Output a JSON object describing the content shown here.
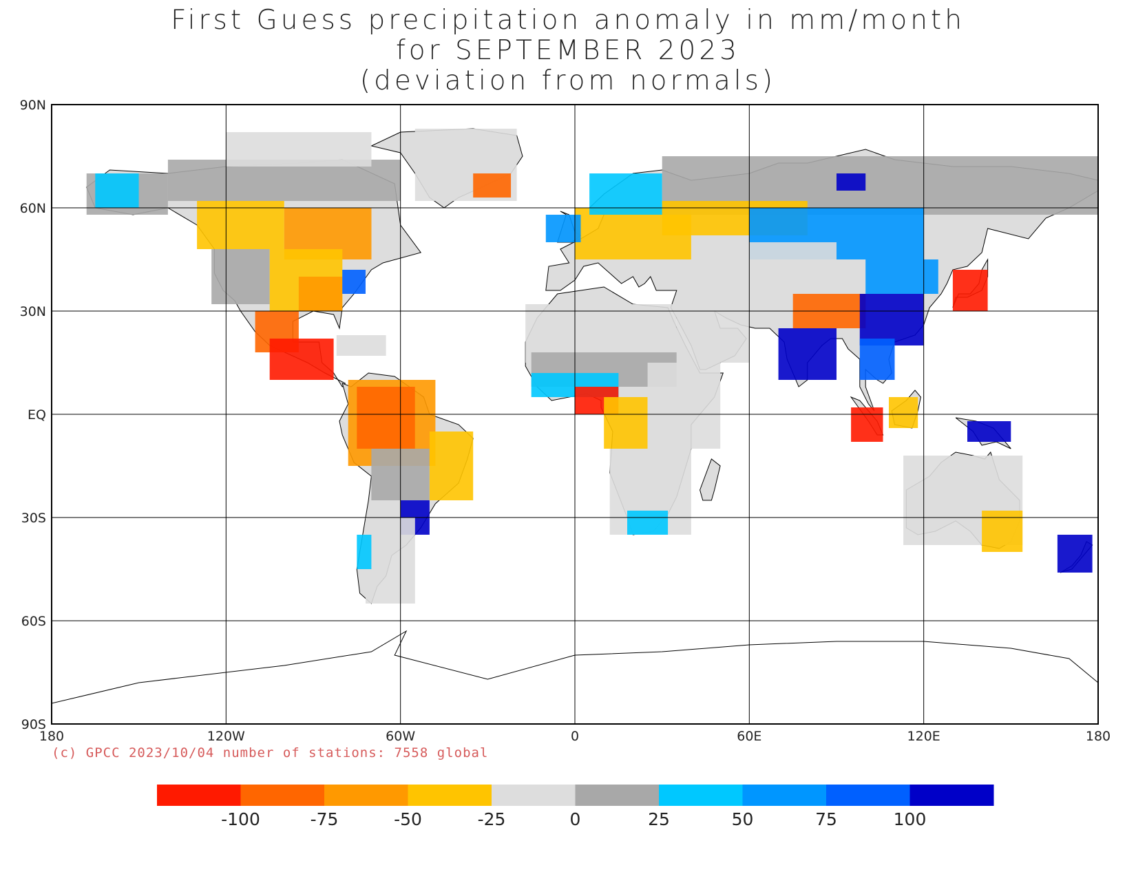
{
  "title": {
    "line1": "First Guess precipitation anomaly in mm/month",
    "line2": "for SEPTEMBER 2023",
    "line3": "(deviation from normals)"
  },
  "map": {
    "projection": "equirectangular",
    "lat_range": [
      -90,
      90
    ],
    "lon_range": [
      -180,
      180
    ],
    "gridlines": true,
    "lat_ticks": [
      "90N",
      "60N",
      "30N",
      "EQ",
      "30S",
      "60S",
      "90S"
    ],
    "lon_ticks": [
      "180",
      "120W",
      "60W",
      "0",
      "60E",
      "120E",
      "180"
    ]
  },
  "credit": "(c) GPCC 2023/10/04 number of stations: 7558 global",
  "colorbar": {
    "colors": [
      "#ff1a00",
      "#ff6600",
      "#ff9900",
      "#ffc400",
      "#dddddd",
      "#a8a8a8",
      "#00c8ff",
      "#0096ff",
      "#0060ff",
      "#0000c8"
    ],
    "tick_labels": [
      "-100",
      "-75",
      "-50",
      "-25",
      "0",
      "25",
      "50",
      "75",
      "100"
    ]
  },
  "regions": [
    {
      "name": "alaska",
      "color": "#a8a8a8",
      "lon": [
        -168,
        -140
      ],
      "lat": [
        58,
        70
      ]
    },
    {
      "name": "alaska-wet",
      "color": "#00c8ff",
      "lon": [
        -165,
        -150
      ],
      "lat": [
        60,
        70
      ]
    },
    {
      "name": "northern-canada",
      "color": "#a8a8a8",
      "lon": [
        -140,
        -60
      ],
      "lat": [
        62,
        74
      ]
    },
    {
      "name": "arctic-islands",
      "color": "#dddddd",
      "lon": [
        -120,
        -70
      ],
      "lat": [
        72,
        82
      ]
    },
    {
      "name": "greenland",
      "color": "#dddddd",
      "lon": [
        -55,
        -20
      ],
      "lat": [
        62,
        83
      ]
    },
    {
      "name": "greenland-east",
      "color": "#ff6600",
      "lon": [
        -35,
        -22
      ],
      "lat": [
        63,
        70
      ]
    },
    {
      "name": "western-canada",
      "color": "#ffc400",
      "lon": [
        -130,
        -100
      ],
      "lat": [
        48,
        62
      ]
    },
    {
      "name": "central-canada",
      "color": "#ff9900",
      "lon": [
        -100,
        -70
      ],
      "lat": [
        45,
        60
      ]
    },
    {
      "name": "us-west",
      "color": "#a8a8a8",
      "lon": [
        -125,
        -105
      ],
      "lat": [
        32,
        48
      ]
    },
    {
      "name": "us-central",
      "color": "#ffc400",
      "lon": [
        -105,
        -80
      ],
      "lat": [
        30,
        48
      ]
    },
    {
      "name": "us-southeast",
      "color": "#ff9900",
      "lon": [
        -95,
        -80
      ],
      "lat": [
        30,
        40
      ]
    },
    {
      "name": "us-east-coast-wet",
      "color": "#0060ff",
      "lon": [
        -80,
        -72
      ],
      "lat": [
        35,
        42
      ]
    },
    {
      "name": "mexico",
      "color": "#ff6600",
      "lon": [
        -110,
        -95
      ],
      "lat": [
        18,
        30
      ]
    },
    {
      "name": "mexico-dry",
      "color": "#ff1a00",
      "lon": [
        -105,
        -83
      ],
      "lat": [
        10,
        22
      ]
    },
    {
      "name": "caribbean",
      "color": "#dddddd",
      "lon": [
        -82,
        -65
      ],
      "lat": [
        17,
        23
      ]
    },
    {
      "name": "amazon",
      "color": "#ff9900",
      "lon": [
        -78,
        -48
      ],
      "lat": [
        -15,
        10
      ]
    },
    {
      "name": "amazon-dry",
      "color": "#ff6600",
      "lon": [
        -75,
        -55
      ],
      "lat": [
        -10,
        8
      ]
    },
    {
      "name": "brazil-east",
      "color": "#ffc400",
      "lon": [
        -50,
        -35
      ],
      "lat": [
        -25,
        -5
      ]
    },
    {
      "name": "bolivia",
      "color": "#a8a8a8",
      "lon": [
        -70,
        -50
      ],
      "lat": [
        -25,
        -10
      ]
    },
    {
      "name": "southern-brazil-wet",
      "color": "#0000c8",
      "lon": [
        -60,
        -50
      ],
      "lat": [
        -35,
        -25
      ]
    },
    {
      "name": "argentina",
      "color": "#dddddd",
      "lon": [
        -72,
        -55
      ],
      "lat": [
        -55,
        -30
      ]
    },
    {
      "name": "chile-coast",
      "color": "#00c8ff",
      "lon": [
        -75,
        -70
      ],
      "lat": [
        -45,
        -35
      ]
    },
    {
      "name": "europe-north",
      "color": "#ffc400",
      "lon": [
        0,
        40
      ],
      "lat": [
        45,
        60
      ]
    },
    {
      "name": "scandinavia",
      "color": "#00c8ff",
      "lon": [
        5,
        30
      ],
      "lat": [
        58,
        70
      ]
    },
    {
      "name": "uk",
      "color": "#0096ff",
      "lon": [
        -10,
        2
      ],
      "lat": [
        50,
        58
      ]
    },
    {
      "name": "russia-north",
      "color": "#a8a8a8",
      "lon": [
        30,
        180
      ],
      "lat": [
        58,
        75
      ]
    },
    {
      "name": "russia-dry",
      "color": "#ffc400",
      "lon": [
        30,
        80
      ],
      "lat": [
        52,
        62
      ]
    },
    {
      "name": "siberia-wet",
      "color": "#0096ff",
      "lon": [
        60,
        120
      ],
      "lat": [
        45,
        60
      ]
    },
    {
      "name": "siberia-very-wet",
      "color": "#0000c8",
      "lon": [
        90,
        100
      ],
      "lat": [
        65,
        70
      ]
    },
    {
      "name": "north-africa",
      "color": "#dddddd",
      "lon": [
        -17,
        35
      ],
      "lat": [
        15,
        32
      ]
    },
    {
      "name": "sahel",
      "color": "#a8a8a8",
      "lon": [
        -15,
        35
      ],
      "lat": [
        8,
        18
      ]
    },
    {
      "name": "west-africa-wet",
      "color": "#00c8ff",
      "lon": [
        -15,
        15
      ],
      "lat": [
        5,
        12
      ]
    },
    {
      "name": "gulf-of-guinea-dry",
      "color": "#ff1a00",
      "lon": [
        0,
        15
      ],
      "lat": [
        0,
        8
      ]
    },
    {
      "name": "central-africa",
      "color": "#ffc400",
      "lon": [
        10,
        25
      ],
      "lat": [
        -10,
        5
      ]
    },
    {
      "name": "east-africa",
      "color": "#dddddd",
      "lon": [
        25,
        50
      ],
      "lat": [
        -10,
        15
      ]
    },
    {
      "name": "southern-africa",
      "color": "#dddddd",
      "lon": [
        12,
        40
      ],
      "lat": [
        -35,
        -10
      ]
    },
    {
      "name": "south-africa-wet",
      "color": "#00c8ff",
      "lon": [
        18,
        32
      ],
      "lat": [
        -35,
        -28
      ]
    },
    {
      "name": "arabia",
      "color": "#dddddd",
      "lon": [
        35,
        60
      ],
      "lat": [
        15,
        32
      ]
    },
    {
      "name": "central-asia",
      "color": "#dddddd",
      "lon": [
        50,
        90
      ],
      "lat": [
        35,
        50
      ]
    },
    {
      "name": "himalaya-dry",
      "color": "#ff6600",
      "lon": [
        75,
        100
      ],
      "lat": [
        25,
        35
      ]
    },
    {
      "name": "india-wet",
      "color": "#0000c8",
      "lon": [
        70,
        90
      ],
      "lat": [
        10,
        25
      ]
    },
    {
      "name": "china-wet",
      "color": "#0000c8",
      "lon": [
        98,
        120
      ],
      "lat": [
        20,
        35
      ]
    },
    {
      "name": "china-north",
      "color": "#0096ff",
      "lon": [
        100,
        125
      ],
      "lat": [
        35,
        45
      ]
    },
    {
      "name": "japan-dry",
      "color": "#ff1a00",
      "lon": [
        130,
        142
      ],
      "lat": [
        30,
        42
      ]
    },
    {
      "name": "indochina",
      "color": "#0060ff",
      "lon": [
        98,
        110
      ],
      "lat": [
        10,
        22
      ]
    },
    {
      "name": "sumatra-dry",
      "color": "#ff1a00",
      "lon": [
        95,
        106
      ],
      "lat": [
        -8,
        2
      ]
    },
    {
      "name": "borneo",
      "color": "#ffc400",
      "lon": [
        108,
        118
      ],
      "lat": [
        -4,
        5
      ]
    },
    {
      "name": "new-guinea-wet",
      "color": "#0000c8",
      "lon": [
        135,
        150
      ],
      "lat": [
        -8,
        -2
      ]
    },
    {
      "name": "australia",
      "color": "#dddddd",
      "lon": [
        113,
        154
      ],
      "lat": [
        -38,
        -12
      ]
    },
    {
      "name": "australia-southeast",
      "color": "#ffc400",
      "lon": [
        140,
        154
      ],
      "lat": [
        -40,
        -28
      ]
    },
    {
      "name": "new-zealand",
      "color": "#0000c8",
      "lon": [
        166,
        178
      ],
      "lat": [
        -46,
        -35
      ]
    }
  ]
}
